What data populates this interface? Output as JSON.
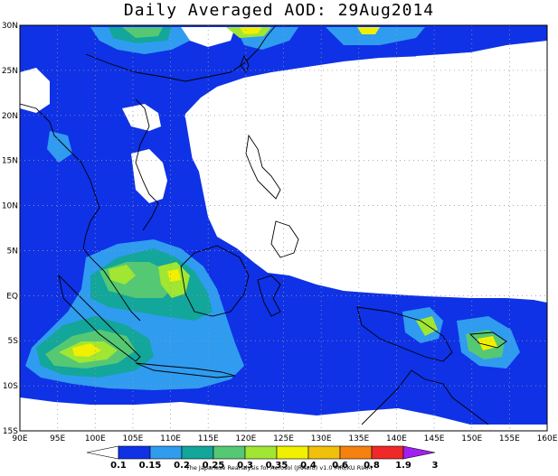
{
  "title": "Daily Averaged AOD: 29Aug2014",
  "credit": "The Japanese Reanalysis for Aerosol (JRAero) v1.0 MRI/KU RIAM",
  "map": {
    "lon_range": [
      90,
      160
    ],
    "lat_range": [
      -15,
      30
    ],
    "lon_ticks": [
      "90E",
      "95E",
      "100E",
      "105E",
      "110E",
      "115E",
      "120E",
      "125E",
      "130E",
      "135E",
      "140E",
      "145E",
      "150E",
      "155E",
      "160E"
    ],
    "lat_ticks": [
      "15S",
      "10S",
      "5S",
      "EQ",
      "5N",
      "10N",
      "15N",
      "20N",
      "25N",
      "30N"
    ]
  },
  "colorbar": {
    "labels": [
      "0.1",
      "0.15",
      "0.2",
      "0.25",
      "0.3",
      "0.35",
      "0.4",
      "0.6",
      "0.8",
      "1.9",
      "3"
    ],
    "colors": [
      "#ffffff",
      "#0f32e6",
      "#2f9cf0",
      "#13a69a",
      "#55c873",
      "#a0e632",
      "#f0f000",
      "#f0c00a",
      "#f5820f",
      "#f02828",
      "#a020f0"
    ]
  },
  "field_colors": {
    "c015": "#0f32e6",
    "c02": "#2f9cf0",
    "c025": "#13a69a",
    "c03": "#55c873",
    "c035": "#a0e632",
    "c04": "#f0f000",
    "c06": "#f0c00a"
  }
}
